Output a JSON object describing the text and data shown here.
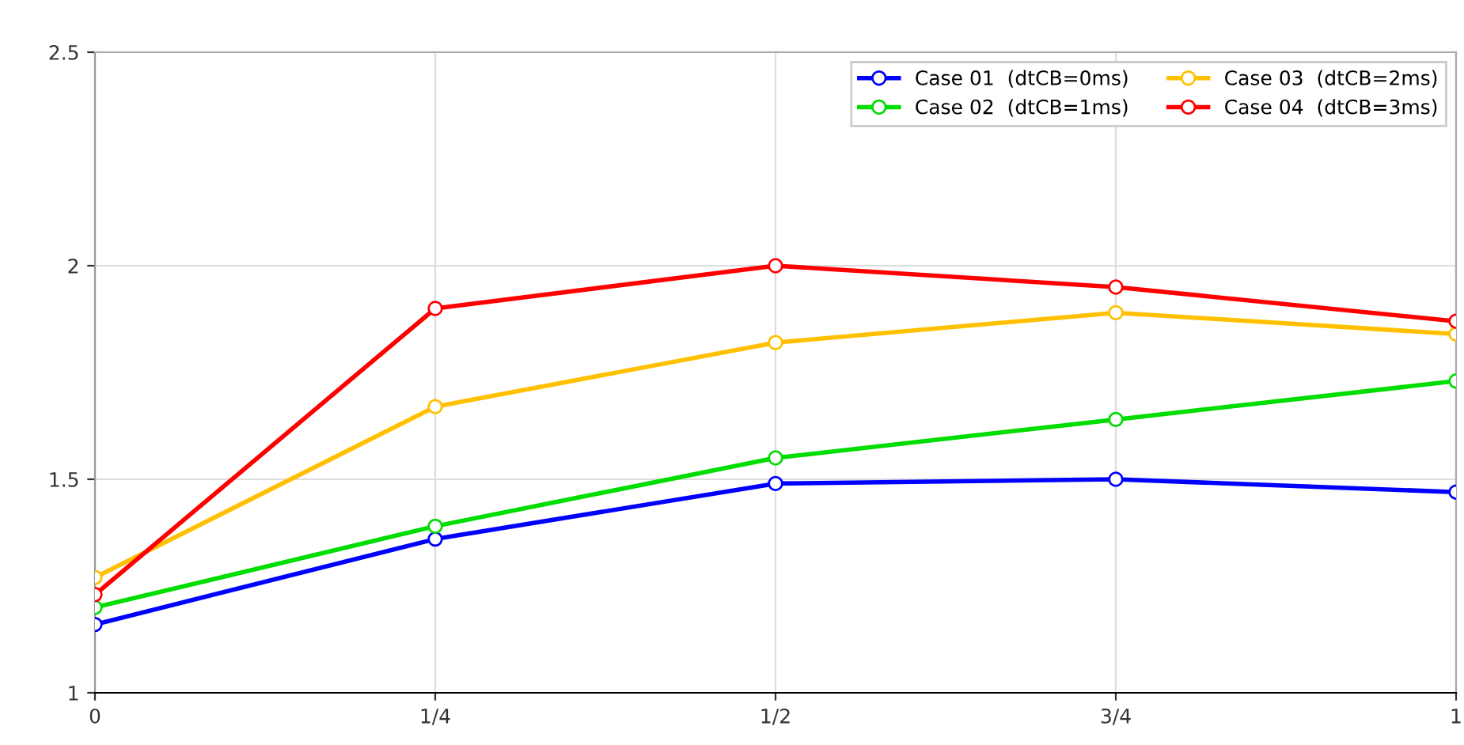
{
  "chart_data": {
    "type": "line",
    "x": [
      0,
      0.25,
      0.5,
      0.75,
      1
    ],
    "series": [
      {
        "name": "Case 01  (dtCB=0ms)",
        "color": "#0000ff",
        "values": [
          1.16,
          1.36,
          1.49,
          1.5,
          1.47
        ]
      },
      {
        "name": "Case 02  (dtCB=1ms)",
        "color": "#00dd00",
        "values": [
          1.2,
          1.39,
          1.55,
          1.64,
          1.73
        ]
      },
      {
        "name": "Case 03  (dtCB=2ms)",
        "color": "#ffc000",
        "values": [
          1.27,
          1.67,
          1.82,
          1.89,
          1.84
        ]
      },
      {
        "name": "Case 04  (dtCB=3ms)",
        "color": "#ff0000",
        "values": [
          1.23,
          1.9,
          2.0,
          1.95,
          1.87
        ]
      }
    ],
    "xlim": [
      0,
      1
    ],
    "xticks": [
      0,
      {
        "value": 0.25,
        "label": "1/4"
      },
      {
        "value": 0.5,
        "label": "1/2"
      },
      {
        "value": 0.75,
        "label": "3/4"
      },
      1
    ],
    "ylim": [
      1,
      2.5
    ],
    "yticks": [
      1,
      1.5,
      2,
      2.5
    ],
    "grid": true,
    "legend": "top right",
    "marker": "circle",
    "line_style": "solid"
  }
}
